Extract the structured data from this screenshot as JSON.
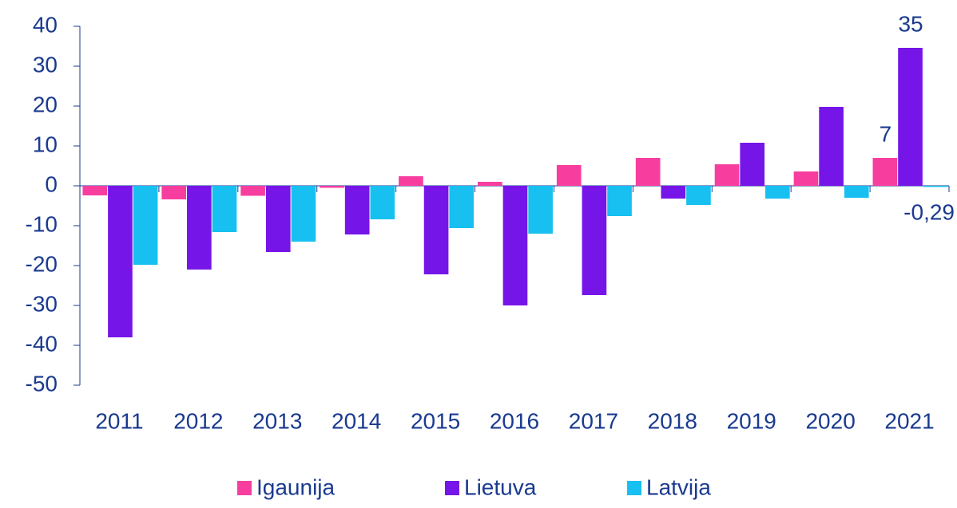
{
  "chart_data": {
    "type": "bar",
    "categories": [
      "2011",
      "2012",
      "2013",
      "2014",
      "2015",
      "2016",
      "2017",
      "2018",
      "2019",
      "2020",
      "2021"
    ],
    "series": [
      {
        "name": "Igaunija",
        "color": "#f73e9f",
        "values": [
          -2.4,
          -3.4,
          -2.5,
          -0.5,
          2.4,
          1,
          5.2,
          7,
          5.4,
          3.6,
          7
        ],
        "value_labels": [
          null,
          null,
          null,
          null,
          null,
          null,
          null,
          null,
          null,
          null,
          "7"
        ]
      },
      {
        "name": "Lietuva",
        "color": "#7615e8",
        "values": [
          -38,
          -21,
          -16.6,
          -12.2,
          -22.2,
          -30,
          -27.4,
          -3.2,
          10.8,
          19.8,
          34.6
        ],
        "value_labels": [
          null,
          null,
          null,
          null,
          null,
          null,
          null,
          null,
          null,
          null,
          "35"
        ]
      },
      {
        "name": "Latvija",
        "color": "#17c0f0",
        "values": [
          -19.8,
          -11.6,
          -14,
          -8.4,
          -10.6,
          -12,
          -7.6,
          -4.8,
          -3.2,
          -3,
          -0.29
        ],
        "value_labels": [
          null,
          null,
          null,
          null,
          null,
          null,
          null,
          null,
          null,
          null,
          "-0,29"
        ]
      }
    ],
    "ylim": [
      -50,
      40
    ],
    "yticks": [
      -50,
      -40,
      -30,
      -20,
      -10,
      0,
      10,
      20,
      30,
      40
    ],
    "grid": false,
    "legend": "bottom"
  }
}
